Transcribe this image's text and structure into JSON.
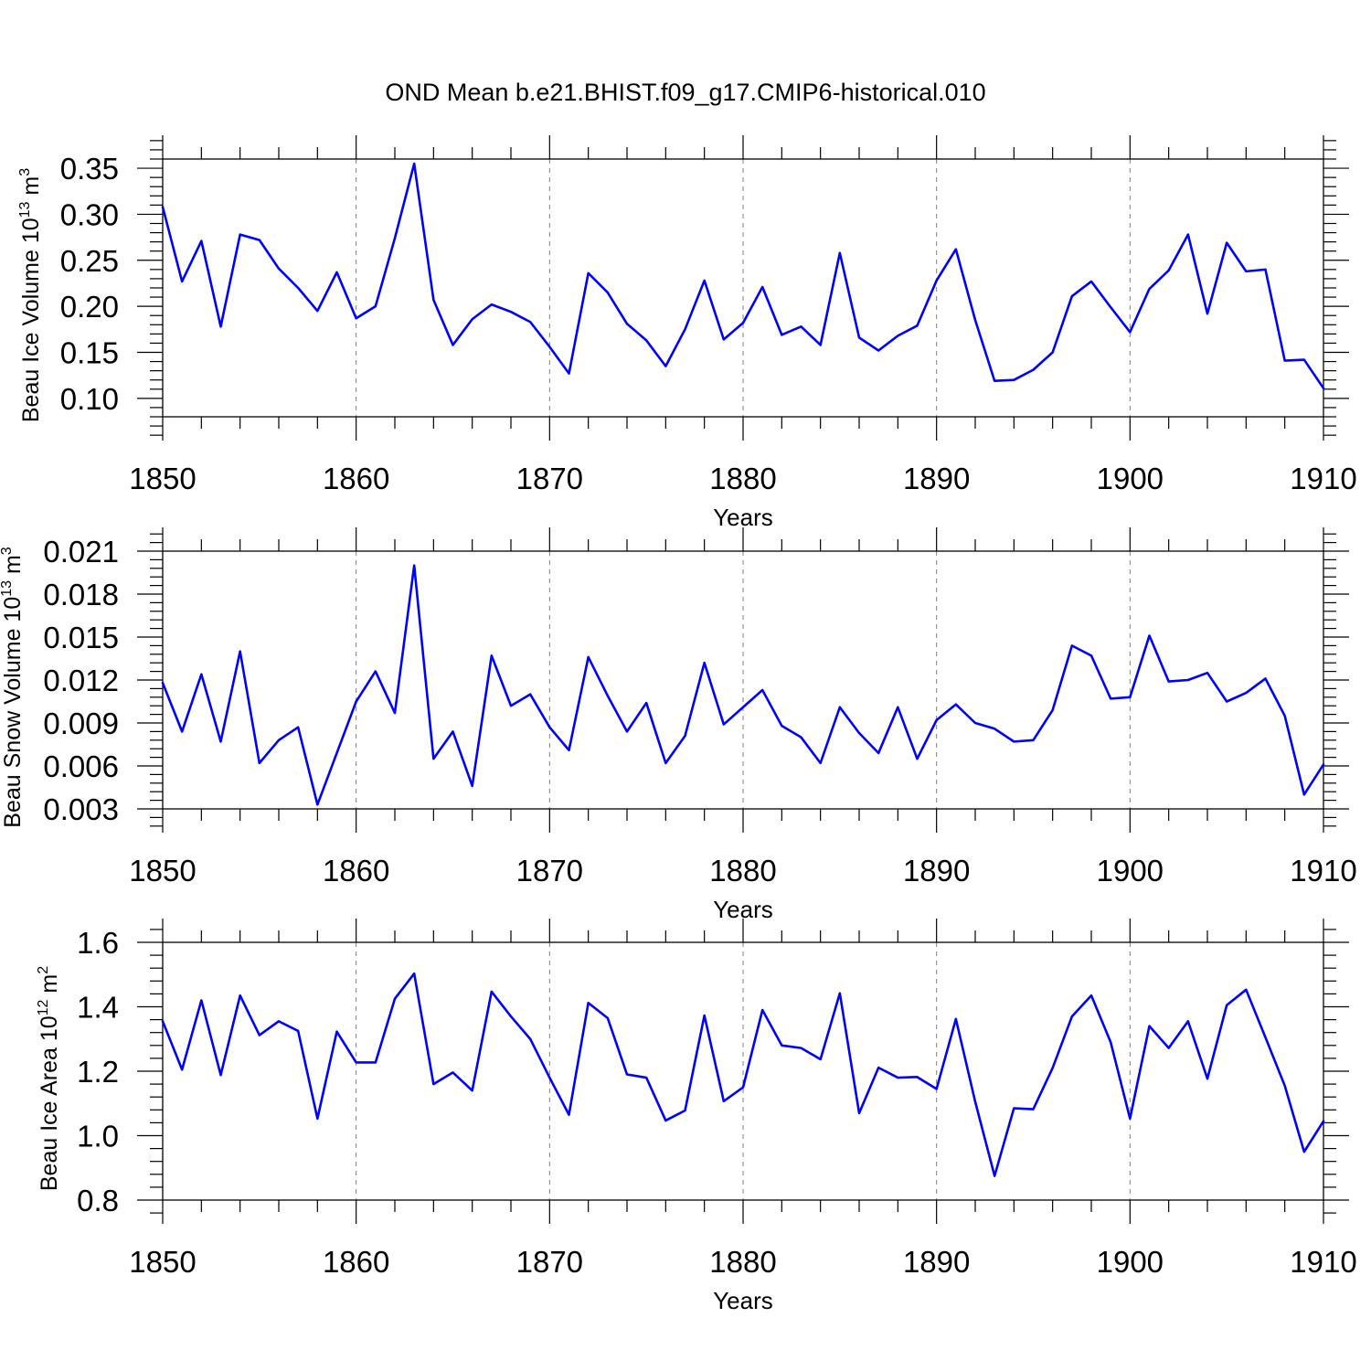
{
  "figure": {
    "title": "OND Mean b.e21.BHIST.f09_g17.CMIP6-historical.010",
    "line_color": "#0000ff"
  },
  "chart_data": [
    {
      "type": "line",
      "title": "OND Mean b.e21.BHIST.f09_g17.CMIP6-historical.010",
      "xlabel": "Years",
      "ylabel": {
        "base": "Beau Ice Volume 10",
        "exp": "13",
        "unit": " m",
        "unit_exp": "3"
      },
      "xlim": [
        1850,
        1910
      ],
      "ylim": [
        0.08,
        0.36
      ],
      "grid": "x-dashed",
      "x_ticks": [
        1850,
        1860,
        1870,
        1880,
        1890,
        1900,
        1910
      ],
      "x_tick_labels": [
        "1850",
        "1860",
        "1870",
        "1880",
        "1890",
        "1900",
        "1910"
      ],
      "y_ticks": [
        0.1,
        0.15,
        0.2,
        0.25,
        0.3,
        0.35
      ],
      "y_tick_labels": [
        "0.10",
        "0.15",
        "0.20",
        "0.25",
        "0.30",
        "0.35"
      ],
      "y_minor_step": 0.01,
      "x_start": 1850,
      "values": [
        0.308,
        0.227,
        0.271,
        0.178,
        0.278,
        0.272,
        0.241,
        0.22,
        0.195,
        0.237,
        0.187,
        0.2,
        0.274,
        0.355,
        0.207,
        0.158,
        0.186,
        0.202,
        0.194,
        0.183,
        0.156,
        0.127,
        0.236,
        0.215,
        0.181,
        0.163,
        0.135,
        0.175,
        0.228,
        0.164,
        0.182,
        0.221,
        0.169,
        0.178,
        0.158,
        0.258,
        0.166,
        0.152,
        0.168,
        0.179,
        0.228,
        0.262,
        0.185,
        0.119,
        0.12,
        0.131,
        0.15,
        0.211,
        0.227,
        0.199,
        0.172,
        0.219,
        0.239,
        0.278,
        0.192,
        0.269,
        0.238,
        0.24,
        0.141,
        0.142,
        0.111
      ]
    },
    {
      "type": "line",
      "xlabel": "Years",
      "ylabel": {
        "base": "Beau Snow Volume 10",
        "exp": "13",
        "unit": " m",
        "unit_exp": "3"
      },
      "xlim": [
        1850,
        1910
      ],
      "ylim": [
        0.003,
        0.021
      ],
      "grid": "x-dashed",
      "x_ticks": [
        1850,
        1860,
        1870,
        1880,
        1890,
        1900,
        1910
      ],
      "x_tick_labels": [
        "1850",
        "1860",
        "1870",
        "1880",
        "1890",
        "1900",
        "1910"
      ],
      "y_ticks": [
        0.003,
        0.006,
        0.009,
        0.012,
        0.015,
        0.018,
        0.021
      ],
      "y_tick_labels": [
        "0.003",
        "0.006",
        "0.009",
        "0.012",
        "0.015",
        "0.018",
        "0.021"
      ],
      "y_minor_step": 0.0006,
      "x_start": 1850,
      "values": [
        0.0118,
        0.0084,
        0.0124,
        0.0077,
        0.014,
        0.0062,
        0.0078,
        0.0087,
        0.0033,
        0.0069,
        0.0105,
        0.0126,
        0.0097,
        0.02,
        0.0065,
        0.0084,
        0.0046,
        0.0137,
        0.0102,
        0.011,
        0.0087,
        0.0071,
        0.0136,
        0.0109,
        0.0084,
        0.0104,
        0.0062,
        0.0081,
        0.0132,
        0.0089,
        0.0101,
        0.0113,
        0.0088,
        0.008,
        0.0062,
        0.0101,
        0.0083,
        0.0069,
        0.0101,
        0.0065,
        0.0092,
        0.0103,
        0.009,
        0.0086,
        0.0077,
        0.0078,
        0.0099,
        0.0144,
        0.0137,
        0.0107,
        0.0108,
        0.0151,
        0.0119,
        0.012,
        0.0125,
        0.0105,
        0.0111,
        0.0121,
        0.0095,
        0.004,
        0.0061
      ]
    },
    {
      "type": "line",
      "xlabel": "Years",
      "ylabel": {
        "base": "Beau Ice Area 10",
        "exp": "12",
        "unit": " m",
        "unit_exp": "2"
      },
      "xlim": [
        1850,
        1910
      ],
      "ylim": [
        0.8,
        1.6
      ],
      "grid": "x-dashed",
      "x_ticks": [
        1850,
        1860,
        1870,
        1880,
        1890,
        1900,
        1910
      ],
      "x_tick_labels": [
        "1850",
        "1860",
        "1870",
        "1880",
        "1890",
        "1900",
        "1910"
      ],
      "y_ticks": [
        0.8,
        1.0,
        1.2,
        1.4,
        1.6
      ],
      "y_tick_labels": [
        "0.8",
        "1.0",
        "1.2",
        "1.4",
        "1.6"
      ],
      "y_minor_step": 0.04,
      "x_start": 1850,
      "values": [
        1.355,
        1.205,
        1.42,
        1.188,
        1.435,
        1.312,
        1.355,
        1.325,
        1.053,
        1.323,
        1.227,
        1.227,
        1.425,
        1.503,
        1.16,
        1.196,
        1.14,
        1.447,
        1.37,
        1.3,
        1.18,
        1.065,
        1.412,
        1.365,
        1.19,
        1.18,
        1.047,
        1.078,
        1.373,
        1.107,
        1.15,
        1.39,
        1.28,
        1.272,
        1.237,
        1.442,
        1.07,
        1.211,
        1.18,
        1.182,
        1.145,
        1.362,
        1.105,
        0.875,
        1.085,
        1.082,
        1.21,
        1.37,
        1.435,
        1.29,
        1.053,
        1.34,
        1.272,
        1.355,
        1.177,
        1.405,
        1.453,
        1.305,
        1.155,
        0.95,
        1.045
      ]
    }
  ]
}
